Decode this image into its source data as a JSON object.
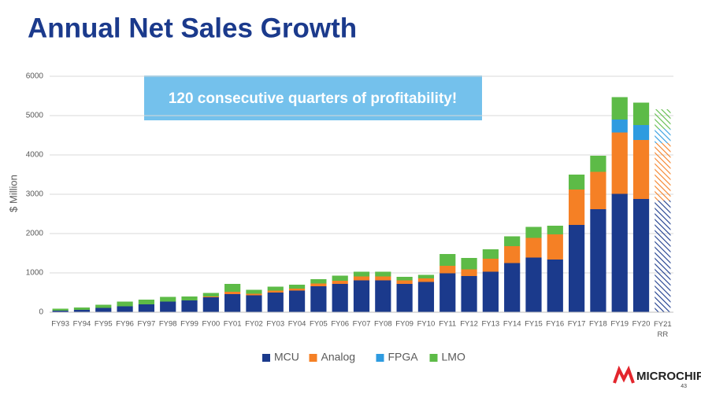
{
  "chart_data": {
    "type": "stacked_bar",
    "title": "Annual Net Sales Growth",
    "annotation": "120 consecutive quarters of profitability!",
    "ylabel": "$ Million",
    "categories": [
      "FY93",
      "FY94",
      "FY95",
      "FY96",
      "FY97",
      "FY98",
      "FY99",
      "FY00",
      "FY01",
      "FY02",
      "FY03",
      "FY04",
      "FY05",
      "FY06",
      "FY07",
      "FY08",
      "FY09",
      "FY10",
      "FY11",
      "FY12",
      "FY13",
      "FY14",
      "FY15",
      "FY16",
      "FY17",
      "FY18",
      "FY19",
      "FY20",
      "FY21 RR"
    ],
    "series": [
      {
        "name": "MCU",
        "color": "#1b3a8c",
        "values": [
          40,
          60,
          110,
          150,
          200,
          270,
          300,
          380,
          460,
          430,
          500,
          550,
          660,
          720,
          810,
          810,
          720,
          770,
          990,
          920,
          1030,
          1250,
          1390,
          1340,
          2220,
          2620,
          3010,
          2880,
          2840
        ]
      },
      {
        "name": "Analog",
        "color": "#f58025",
        "values": [
          0,
          0,
          0,
          0,
          0,
          0,
          0,
          20,
          60,
          40,
          50,
          50,
          70,
          80,
          100,
          100,
          90,
          90,
          190,
          170,
          330,
          430,
          500,
          640,
          900,
          950,
          1560,
          1500,
          1460
        ]
      },
      {
        "name": "FPGA",
        "color": "#2e9be0",
        "values": [
          0,
          0,
          0,
          0,
          0,
          0,
          0,
          0,
          0,
          0,
          0,
          0,
          0,
          0,
          0,
          0,
          0,
          0,
          0,
          0,
          0,
          0,
          0,
          0,
          0,
          0,
          330,
          380,
          360
        ]
      },
      {
        "name": "LMO",
        "color": "#5dbb47",
        "values": [
          50,
          60,
          80,
          120,
          120,
          120,
          100,
          90,
          200,
          100,
          100,
          100,
          110,
          130,
          120,
          120,
          90,
          90,
          300,
          290,
          240,
          250,
          280,
          220,
          380,
          410,
          570,
          570,
          500
        ]
      }
    ],
    "ylim": [
      0,
      6000
    ],
    "yticks": [
      0,
      1000,
      2000,
      3000,
      4000,
      5000,
      6000
    ],
    "grid": true,
    "hatch_last_bar": true,
    "legend": "bottom"
  },
  "logo": "MICROCHIP",
  "page_number": "43"
}
